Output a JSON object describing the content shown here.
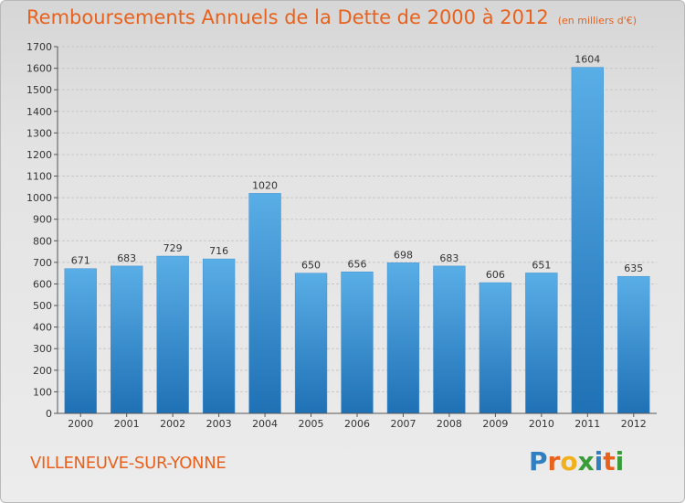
{
  "header": {
    "title": "Remboursements Annuels de la Dette de 2000 à 2012",
    "unit": "(en milliers d'€)"
  },
  "footer": {
    "city": "VILLENEUVE-SUR-YONNE",
    "logo": [
      "P",
      "r",
      "o",
      "x",
      "i",
      "t",
      "i"
    ]
  },
  "colors": {
    "title": "#e8621d",
    "bar_top": "#5aaee6",
    "bar_bottom": "#1f71b5",
    "logo": [
      "#2f7fc1",
      "#e8621d",
      "#f1b01c",
      "#3a9b3a",
      "#2f7fc1",
      "#e8621d",
      "#3a9b3a"
    ]
  },
  "chart_data": {
    "type": "bar",
    "title": "Remboursements Annuels de la Dette de 2000 à 2012",
    "categories": [
      "2000",
      "2001",
      "2002",
      "2003",
      "2004",
      "2005",
      "2006",
      "2007",
      "2008",
      "2009",
      "2010",
      "2011",
      "2012"
    ],
    "values": [
      671,
      683,
      729,
      716,
      1020,
      650,
      656,
      698,
      683,
      606,
      651,
      1604,
      635
    ],
    "ylim": [
      0,
      1700
    ],
    "yticks": [
      0,
      100,
      200,
      300,
      400,
      500,
      600,
      700,
      800,
      900,
      1000,
      1100,
      1200,
      1300,
      1400,
      1500,
      1600,
      1700
    ],
    "grid": true,
    "legend": "none"
  }
}
